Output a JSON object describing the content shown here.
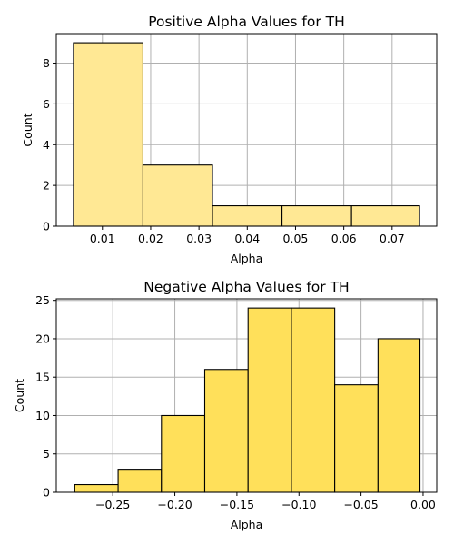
{
  "chart_data": [
    {
      "type": "bar",
      "title": "Positive Alpha Values for TH",
      "xlabel": "Alpha",
      "ylabel": "Count",
      "xlim": [
        0.00045,
        0.07925
      ],
      "ylim": [
        0,
        9.45
      ],
      "xticks": [
        0.01,
        0.02,
        0.03,
        0.04,
        0.05,
        0.06,
        0.07
      ],
      "xtick_labels": [
        "0.01",
        "0.02",
        "0.03",
        "0.04",
        "0.05",
        "0.06",
        "0.07"
      ],
      "yticks": [
        0,
        2,
        4,
        6,
        8
      ],
      "ytick_labels": [
        "0",
        "2",
        "4",
        "6",
        "8"
      ],
      "bin_edges": [
        0.004,
        0.0184,
        0.0328,
        0.0472,
        0.0616,
        0.0757
      ],
      "values": [
        9,
        3,
        1,
        1,
        1
      ],
      "color": "#ffe894",
      "grid": true
    },
    {
      "type": "bar",
      "title": "Negative Alpha Values for TH",
      "xlabel": "Alpha",
      "ylabel": "Count",
      "xlim": [
        -0.2955,
        0.011
      ],
      "ylim": [
        0,
        25.2
      ],
      "xticks": [
        -0.25,
        -0.2,
        -0.15,
        -0.1,
        -0.05,
        0.0
      ],
      "xtick_labels": [
        "−0.25",
        "−0.20",
        "−0.15",
        "−0.10",
        "−0.05",
        "0.00"
      ],
      "yticks": [
        0,
        5,
        10,
        15,
        20,
        25
      ],
      "ytick_labels": [
        "0",
        "5",
        "10",
        "15",
        "20",
        "25"
      ],
      "bin_edges": [
        -0.2806,
        -0.2457,
        -0.2108,
        -0.1759,
        -0.141,
        -0.1061,
        -0.0712,
        -0.0363,
        -0.0025
      ],
      "values": [
        1,
        3,
        10,
        16,
        24,
        24,
        14,
        20
      ],
      "color": "#ffe05a",
      "grid": true
    }
  ]
}
